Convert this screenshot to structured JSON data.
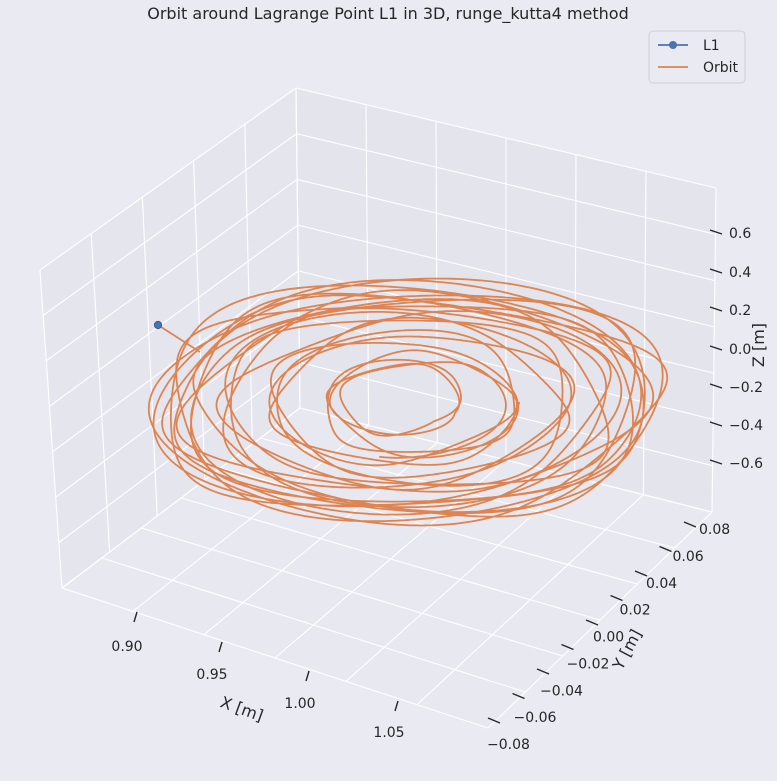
{
  "chart_data": {
    "type": "line",
    "projection": "3d",
    "title": "Orbit around Lagrange Point L1 in 3D, runge_kutta4 method",
    "xlabel": "X [m]",
    "ylabel": "Y [m]",
    "zlabel": "Z [m]",
    "x_ticks": [
      "0.90",
      "0.95",
      "1.00",
      "1.05"
    ],
    "y_ticks": [
      "0.08",
      "0.06",
      "0.04",
      "0.02",
      "0.00",
      "−0.02",
      "−0.04",
      "−0.06",
      "−0.08"
    ],
    "z_ticks": [
      "0.6",
      "0.4",
      "0.2",
      "0.0",
      "−0.2",
      "−0.4",
      "−0.6"
    ],
    "grid": true,
    "legend_position": "top-right",
    "series": [
      {
        "name": "L1",
        "marker": "circle",
        "color": "#4c72b0",
        "points": [
          {
            "x": 0.837,
            "y": 0.0,
            "z": 0.0
          }
        ]
      },
      {
        "name": "Orbit",
        "color": "#dd8452",
        "center": {
          "x": 0.98,
          "y": 0.0,
          "z": 0.0
        },
        "extent_x": [
          0.837,
          1.12
        ],
        "extent_y": [
          -0.08,
          0.08
        ],
        "extent_z": [
          -0.45,
          0.45
        ]
      }
    ]
  },
  "colors": {
    "background": "#eaeaf2",
    "grid": "#ffffff",
    "l1": "#4c72b0",
    "orbit": "#dd8452"
  }
}
